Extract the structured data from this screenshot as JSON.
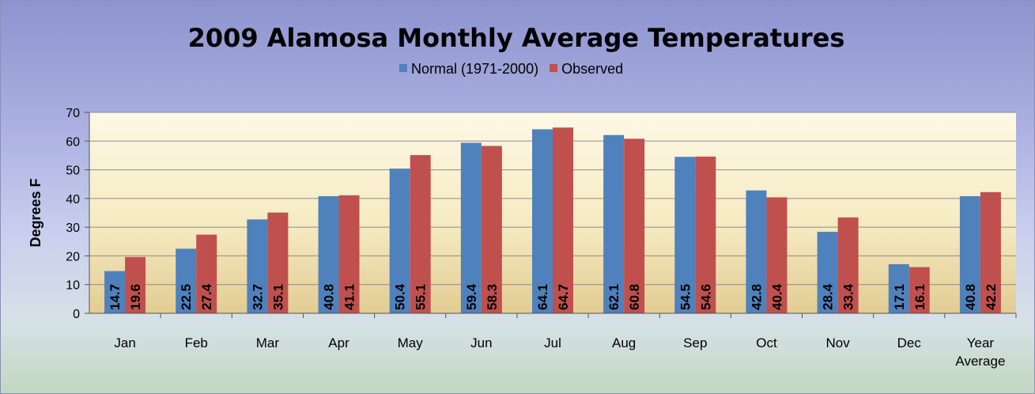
{
  "chart_data": {
    "type": "bar",
    "title": "2009 Alamosa Monthly Average Temperatures",
    "xlabel": "",
    "ylabel": "Degrees F",
    "ylim": [
      0,
      70
    ],
    "yticks": [
      "0",
      "10",
      "20",
      "30",
      "40",
      "50",
      "60",
      "70"
    ],
    "grid": true,
    "legend_position": "top",
    "categories": [
      [
        "Jan"
      ],
      [
        "Feb"
      ],
      [
        "Mar"
      ],
      [
        "Apr"
      ],
      [
        "May"
      ],
      [
        "Jun"
      ],
      [
        "Jul"
      ],
      [
        "Aug"
      ],
      [
        "Sep"
      ],
      [
        "Oct"
      ],
      [
        "Nov"
      ],
      [
        "Dec"
      ],
      [
        "Year",
        "Average"
      ]
    ],
    "series": [
      {
        "name": "Normal (1971-2000)",
        "color": "#4f81bd",
        "values": [
          14.7,
          22.5,
          32.7,
          40.8,
          50.4,
          59.4,
          64.1,
          62.1,
          54.5,
          42.8,
          28.4,
          17.1,
          40.8
        ],
        "labels": [
          "14.7",
          "22.5",
          "32.7",
          "40.8",
          "50.4",
          "59.4",
          "64.1",
          "62.1",
          "54.5",
          "42.8",
          "28.4",
          "17.1",
          "40.8"
        ]
      },
      {
        "name": "Observed",
        "color": "#c0504d",
        "values": [
          19.6,
          27.4,
          35.1,
          41.1,
          55.1,
          58.3,
          64.7,
          60.8,
          54.6,
          40.4,
          33.4,
          16.1,
          42.2
        ],
        "labels": [
          "19.6",
          "27.4",
          "35.1",
          "41.1",
          "55.1",
          "58.3",
          "64.7",
          "60.8",
          "54.6",
          "40.4",
          "33.4",
          "16.1",
          "42.2"
        ]
      }
    ]
  }
}
